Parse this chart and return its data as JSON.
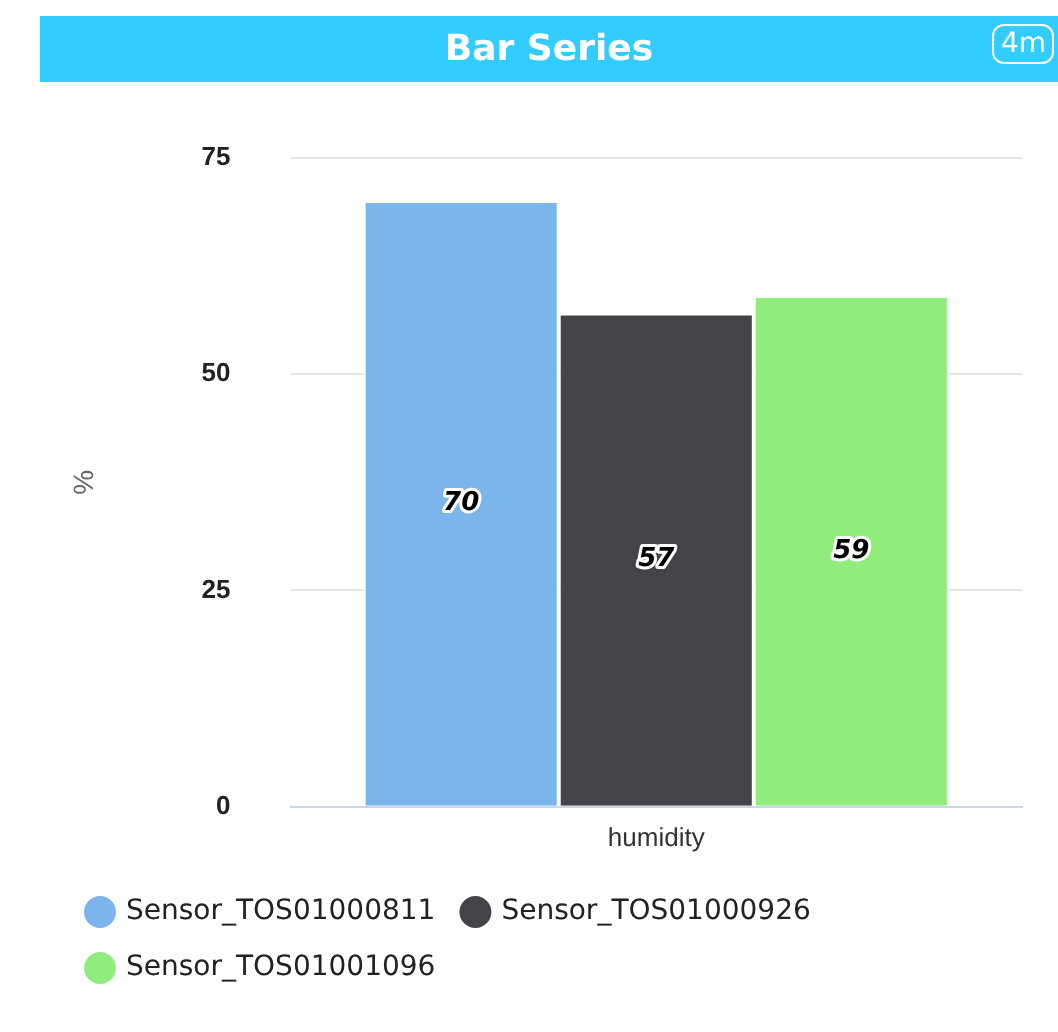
{
  "chart_data": {
    "type": "bar",
    "title": "Bar Series",
    "ylabel": "%",
    "categories": [
      "humidity"
    ],
    "series": [
      {
        "name": "Sensor_TOS01000811",
        "color": "#7cb5ec",
        "values": [
          70
        ]
      },
      {
        "name": "Sensor_TOS01000926",
        "color": "#434348",
        "values": [
          57
        ]
      },
      {
        "name": "Sensor_TOS01001096",
        "color": "#90ed7d",
        "values": [
          59
        ]
      }
    ],
    "ylim": [
      0,
      75
    ],
    "yticks": [
      0,
      25,
      50,
      75
    ],
    "grid": "y",
    "legend": "bottom",
    "data_labels": true,
    "annotations": [
      "4m"
    ]
  }
}
